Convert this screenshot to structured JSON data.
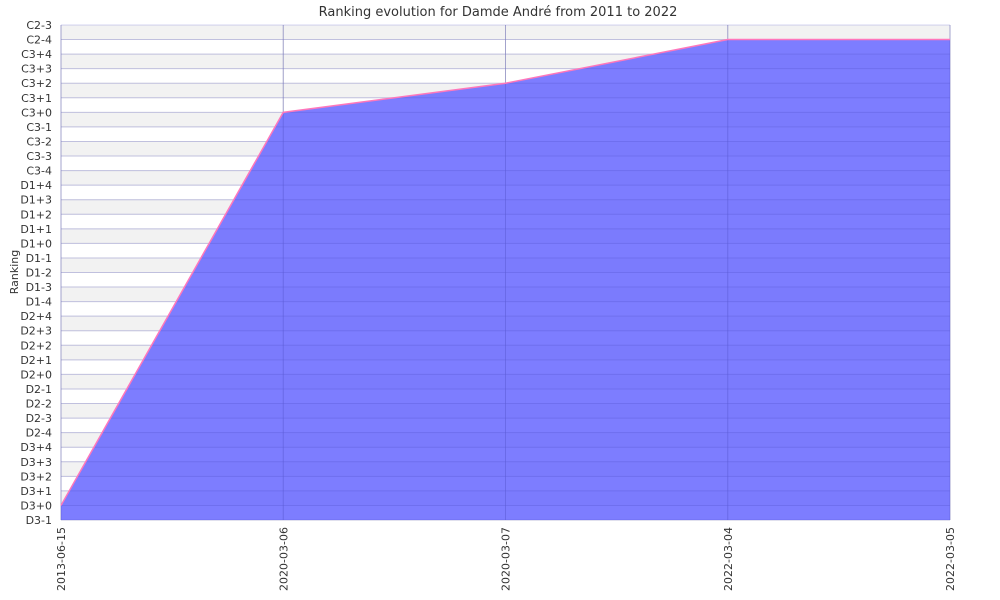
{
  "chart_data": {
    "type": "area",
    "title": "Ranking evolution for Damde André from 2011 to 2022",
    "ylabel": "Ranking",
    "xlabel": "",
    "y_categories": [
      "D3-1",
      "D3+0",
      "D3+1",
      "D3+2",
      "D3+3",
      "D3+4",
      "D2-4",
      "D2-3",
      "D2-2",
      "D2-1",
      "D2+0",
      "D2+1",
      "D2+2",
      "D2+3",
      "D2+4",
      "D1-4",
      "D1-3",
      "D1-2",
      "D1-1",
      "D1+0",
      "D1+1",
      "D1+2",
      "D1+3",
      "D1+4",
      "C3-4",
      "C3-3",
      "C3-2",
      "C3-1",
      "C3+0",
      "C3+1",
      "C3+2",
      "C3+3",
      "C3+4",
      "C2-4",
      "C2-3"
    ],
    "x": [
      "2013-06-15",
      "2020-03-06",
      "2020-03-07",
      "2022-03-04",
      "2022-03-05"
    ],
    "series": [
      {
        "values": [
          "D3+0",
          "C3+0",
          "C3+2",
          "C2-4",
          "C2-4"
        ]
      }
    ],
    "grid": true,
    "colors": {
      "fill": "#6666ff",
      "line": "#ff77bb",
      "band": "#f2f2f2",
      "grid": "#cccccc"
    }
  }
}
